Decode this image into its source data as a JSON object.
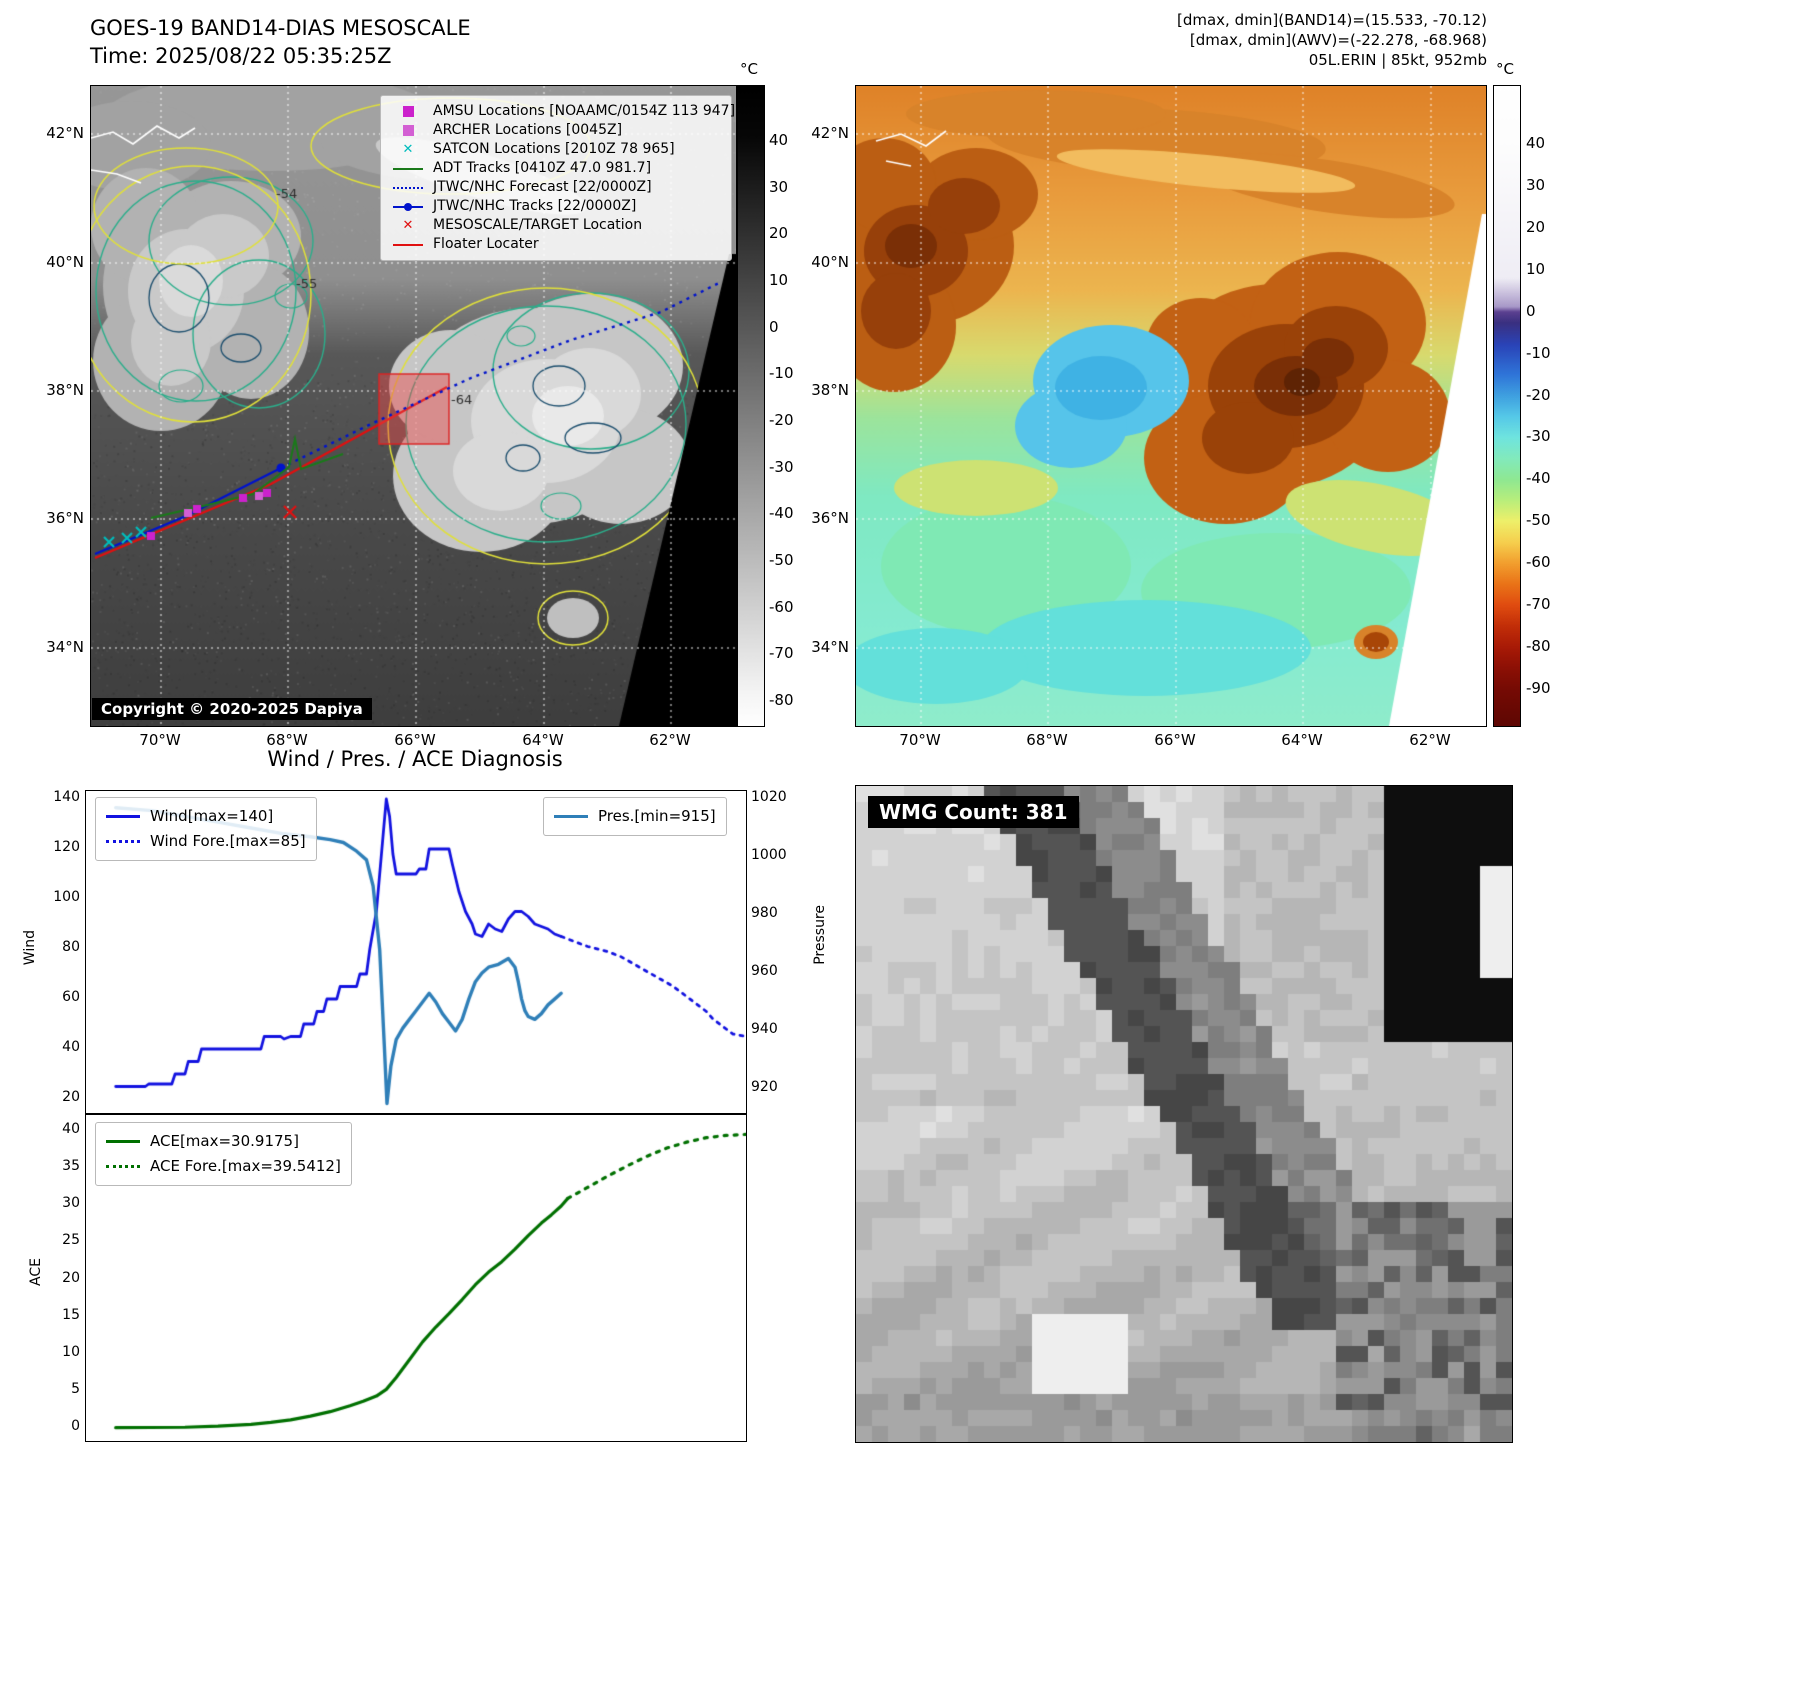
{
  "panel_band14": {
    "title": "GOES-19 BAND14-DIAS MESOSCALE",
    "subtitle": "Time: 2025/08/22 05:35:25Z",
    "copyright": "Copyright © 2020-2025 Dapiya",
    "legend": [
      {
        "label": "AMSU Locations [NOAAMC/0154Z 113 947]",
        "marker": "square",
        "color": "#cc22cc"
      },
      {
        "label": "ARCHER Locations [0045Z]",
        "marker": "square",
        "color": "#d35fd3"
      },
      {
        "label": "SATCON Locations [2010Z 78 965]",
        "marker": "x",
        "color": "#00bcbc"
      },
      {
        "label": "ADT Tracks [0410Z 47.0 981.7]",
        "marker": "line",
        "color": "#1a7a1a"
      },
      {
        "label": "JTWC/NHC Forecast [22/0000Z]",
        "marker": "dotted",
        "color": "#0013cc"
      },
      {
        "label": "JTWC/NHC Tracks [22/0000Z]",
        "marker": "line-dot",
        "color": "#0013cc"
      },
      {
        "label": "MESOSCALE/TARGET Location",
        "marker": "x",
        "color": "#e01010"
      },
      {
        "label": "Floater Locater",
        "marker": "line",
        "color": "#e01010"
      }
    ],
    "lat_ticks": [
      "42°N",
      "40°N",
      "38°N",
      "36°N",
      "34°N"
    ],
    "lon_ticks": [
      "70°W",
      "68°W",
      "66°W",
      "64°W",
      "62°W"
    ],
    "colorbar": {
      "unit": "°C",
      "ticks": [
        "40",
        "30",
        "20",
        "10",
        "0",
        "-10",
        "-20",
        "-30",
        "-40",
        "-50",
        "-60",
        "-70",
        "-80"
      ]
    },
    "contour_labels": [
      "-54",
      "-55",
      "-64"
    ]
  },
  "panel_awv": {
    "header_line1": "[dmax, dmin](BAND14)=(15.533, -70.12)",
    "header_line2": "[dmax, dmin](AWV)=(-22.278, -68.968)",
    "header_line3": "05L.ERIN | 85kt, 952mb",
    "lat_ticks": [
      "42°N",
      "40°N",
      "38°N",
      "36°N",
      "34°N"
    ],
    "lon_ticks": [
      "70°W",
      "68°W",
      "66°W",
      "64°W",
      "62°W"
    ],
    "colorbar": {
      "unit": "°C",
      "ticks": [
        "40",
        "30",
        "20",
        "10",
        "0",
        "-10",
        "-20",
        "-30",
        "-40",
        "-50",
        "-60",
        "-70",
        "-80",
        "-90"
      ]
    }
  },
  "panel_diagnosis": {
    "title": "Wind / Pres. / ACE Diagnosis",
    "wind_ylabel": "Wind",
    "pressure_ylabel": "Pressure",
    "ace_ylabel": "ACE",
    "wind_yticks": [
      "140",
      "120",
      "100",
      "80",
      "60",
      "40",
      "20"
    ],
    "pressure_yticks": [
      "1020",
      "1000",
      "980",
      "960",
      "940",
      "920"
    ],
    "ace_yticks": [
      "40",
      "35",
      "30",
      "25",
      "20",
      "15",
      "10",
      "5",
      "0"
    ]
  },
  "panel_wmg": {
    "label": "WMG Count: 381"
  },
  "chart_data": [
    {
      "type": "line",
      "title": "Wind / Pres. / ACE Diagnosis (wind & pressure)",
      "xlabel": "",
      "ylabel_left": "Wind",
      "ylabel_right": "Pressure",
      "ylim_left": [
        20,
        140
      ],
      "ylim_right": [
        915,
        1020
      ],
      "x_range": [
        0,
        1
      ],
      "grid": false,
      "legend_position": "upper-left and upper-right",
      "series": [
        {
          "name": "Wind[max=140]",
          "axis": "left",
          "style": "solid",
          "color": "#1212e0",
          "points": [
            [
              0.045,
              25
            ],
            [
              0.09,
              25
            ],
            [
              0.095,
              26
            ],
            [
              0.13,
              26
            ],
            [
              0.135,
              30
            ],
            [
              0.15,
              30
            ],
            [
              0.155,
              35
            ],
            [
              0.17,
              35
            ],
            [
              0.175,
              40
            ],
            [
              0.265,
              40
            ],
            [
              0.27,
              45
            ],
            [
              0.295,
              45
            ],
            [
              0.3,
              44
            ],
            [
              0.31,
              45
            ],
            [
              0.325,
              45
            ],
            [
              0.33,
              50
            ],
            [
              0.345,
              50
            ],
            [
              0.35,
              55
            ],
            [
              0.36,
              55
            ],
            [
              0.365,
              60
            ],
            [
              0.38,
              60
            ],
            [
              0.385,
              65
            ],
            [
              0.41,
              65
            ],
            [
              0.415,
              70
            ],
            [
              0.425,
              70
            ],
            [
              0.43,
              80
            ],
            [
              0.44,
              95
            ],
            [
              0.45,
              125
            ],
            [
              0.455,
              140
            ],
            [
              0.46,
              133
            ],
            [
              0.465,
              118
            ],
            [
              0.47,
              110
            ],
            [
              0.5,
              110
            ],
            [
              0.505,
              112
            ],
            [
              0.515,
              112
            ],
            [
              0.52,
              120
            ],
            [
              0.55,
              120
            ],
            [
              0.555,
              114
            ],
            [
              0.565,
              103
            ],
            [
              0.575,
              95
            ],
            [
              0.585,
              90
            ],
            [
              0.59,
              86
            ],
            [
              0.6,
              85
            ],
            [
              0.61,
              90
            ],
            [
              0.62,
              88
            ],
            [
              0.63,
              87
            ],
            [
              0.64,
              92
            ],
            [
              0.65,
              95
            ],
            [
              0.66,
              95
            ],
            [
              0.67,
              93
            ],
            [
              0.68,
              90
            ],
            [
              0.7,
              88
            ],
            [
              0.71,
              86
            ],
            [
              0.72,
              85
            ]
          ]
        },
        {
          "name": "Wind Fore.[max=85]",
          "axis": "left",
          "style": "dotted",
          "color": "#1212e0",
          "points": [
            [
              0.72,
              85
            ],
            [
              0.76,
              81
            ],
            [
              0.79,
              79
            ],
            [
              0.81,
              77
            ],
            [
              0.83,
              74
            ],
            [
              0.85,
              71
            ],
            [
              0.87,
              68
            ],
            [
              0.89,
              65
            ],
            [
              0.91,
              61
            ],
            [
              0.925,
              58
            ],
            [
              0.94,
              55
            ],
            [
              0.95,
              52
            ],
            [
              0.96,
              50
            ],
            [
              0.97,
              48
            ],
            [
              0.98,
              46
            ],
            [
              1.0,
              45
            ]
          ]
        },
        {
          "name": "Pres.[min=915]",
          "axis": "right",
          "style": "solid",
          "color": "#2f7fb8",
          "points": [
            [
              0.045,
              1017
            ],
            [
              0.1,
              1016
            ],
            [
              0.15,
              1014
            ],
            [
              0.2,
              1012
            ],
            [
              0.25,
              1010
            ],
            [
              0.3,
              1008
            ],
            [
              0.34,
              1007
            ],
            [
              0.37,
              1006
            ],
            [
              0.39,
              1005
            ],
            [
              0.41,
              1002
            ],
            [
              0.425,
              999
            ],
            [
              0.435,
              990
            ],
            [
              0.445,
              968
            ],
            [
              0.452,
              935
            ],
            [
              0.456,
              915
            ],
            [
              0.462,
              928
            ],
            [
              0.47,
              937
            ],
            [
              0.48,
              941
            ],
            [
              0.49,
              944
            ],
            [
              0.5,
              947
            ],
            [
              0.51,
              950
            ],
            [
              0.52,
              953
            ],
            [
              0.53,
              950
            ],
            [
              0.54,
              946
            ],
            [
              0.55,
              943
            ],
            [
              0.56,
              940
            ],
            [
              0.57,
              944
            ],
            [
              0.58,
              951
            ],
            [
              0.59,
              957
            ],
            [
              0.6,
              960
            ],
            [
              0.61,
              962
            ],
            [
              0.625,
              963
            ],
            [
              0.64,
              965
            ],
            [
              0.65,
              962
            ],
            [
              0.655,
              957
            ],
            [
              0.66,
              951
            ],
            [
              0.665,
              947
            ],
            [
              0.67,
              945
            ],
            [
              0.68,
              944
            ],
            [
              0.69,
              946
            ],
            [
              0.7,
              949
            ],
            [
              0.71,
              951
            ],
            [
              0.72,
              953
            ]
          ]
        }
      ]
    },
    {
      "type": "line",
      "title": "ACE",
      "xlabel": "",
      "ylabel": "ACE",
      "ylim": [
        0,
        40
      ],
      "x_range": [
        0,
        1
      ],
      "grid": false,
      "legend_position": "upper-left",
      "series": [
        {
          "name": "ACE[max=30.9175]",
          "style": "solid",
          "color": "#007000",
          "points": [
            [
              0.045,
              0.05
            ],
            [
              0.15,
              0.1
            ],
            [
              0.2,
              0.25
            ],
            [
              0.25,
              0.5
            ],
            [
              0.28,
              0.75
            ],
            [
              0.31,
              1.1
            ],
            [
              0.34,
              1.6
            ],
            [
              0.37,
              2.2
            ],
            [
              0.4,
              3.0
            ],
            [
              0.42,
              3.6
            ],
            [
              0.44,
              4.3
            ],
            [
              0.455,
              5.2
            ],
            [
              0.47,
              6.8
            ],
            [
              0.49,
              9.2
            ],
            [
              0.51,
              11.6
            ],
            [
              0.53,
              13.6
            ],
            [
              0.55,
              15.4
            ],
            [
              0.57,
              17.3
            ],
            [
              0.59,
              19.3
            ],
            [
              0.61,
              21.0
            ],
            [
              0.63,
              22.4
            ],
            [
              0.65,
              24.1
            ],
            [
              0.67,
              25.9
            ],
            [
              0.69,
              27.6
            ],
            [
              0.705,
              28.7
            ],
            [
              0.72,
              29.9
            ],
            [
              0.73,
              30.92
            ]
          ]
        },
        {
          "name": "ACE Fore.[max=39.5412]",
          "style": "dotted",
          "color": "#007000",
          "points": [
            [
              0.73,
              30.92
            ],
            [
              0.76,
              32.4
            ],
            [
              0.79,
              33.9
            ],
            [
              0.82,
              35.3
            ],
            [
              0.85,
              36.6
            ],
            [
              0.88,
              37.7
            ],
            [
              0.91,
              38.5
            ],
            [
              0.94,
              39.1
            ],
            [
              0.97,
              39.4
            ],
            [
              1.0,
              39.54
            ]
          ]
        }
      ]
    }
  ]
}
